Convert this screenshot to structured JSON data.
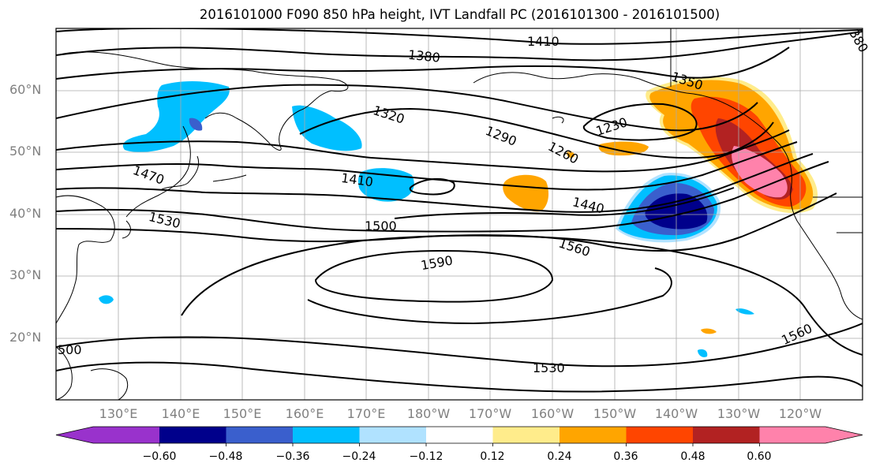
{
  "title": "2016101000 F090 850 hPa height, IVT Landfall PC (2016101300 - 2016101500)",
  "lat_labels": [
    "60°N",
    "50°N",
    "40°N",
    "30°N",
    "20°N"
  ],
  "lon_labels": [
    "130°E",
    "140°E",
    "150°E",
    "160°E",
    "170°E",
    "180°W",
    "170°W",
    "160°W",
    "150°W",
    "140°W",
    "130°W",
    "120°W"
  ],
  "contour_labels": [
    "1410",
    "1380",
    "1350",
    "1320",
    "1290",
    "1260",
    "1230",
    "1470",
    "1410",
    "1440",
    "1530",
    "1500",
    "1590",
    "1560",
    "1560",
    "1530",
    "500",
    "380"
  ],
  "colorbar": {
    "ticks": [
      "−0.60",
      "−0.48",
      "−0.36",
      "−0.24",
      "−0.12",
      "0.12",
      "0.24",
      "0.36",
      "0.48",
      "0.60"
    ],
    "colors": [
      "#9932CC",
      "#00008B",
      "#3A5FCD",
      "#00BFFF",
      "#B0E2FF",
      "#FFFFFF",
      "#FFEC8B",
      "#FFA500",
      "#FF4500",
      "#B22222",
      "#FF82AB"
    ]
  }
}
